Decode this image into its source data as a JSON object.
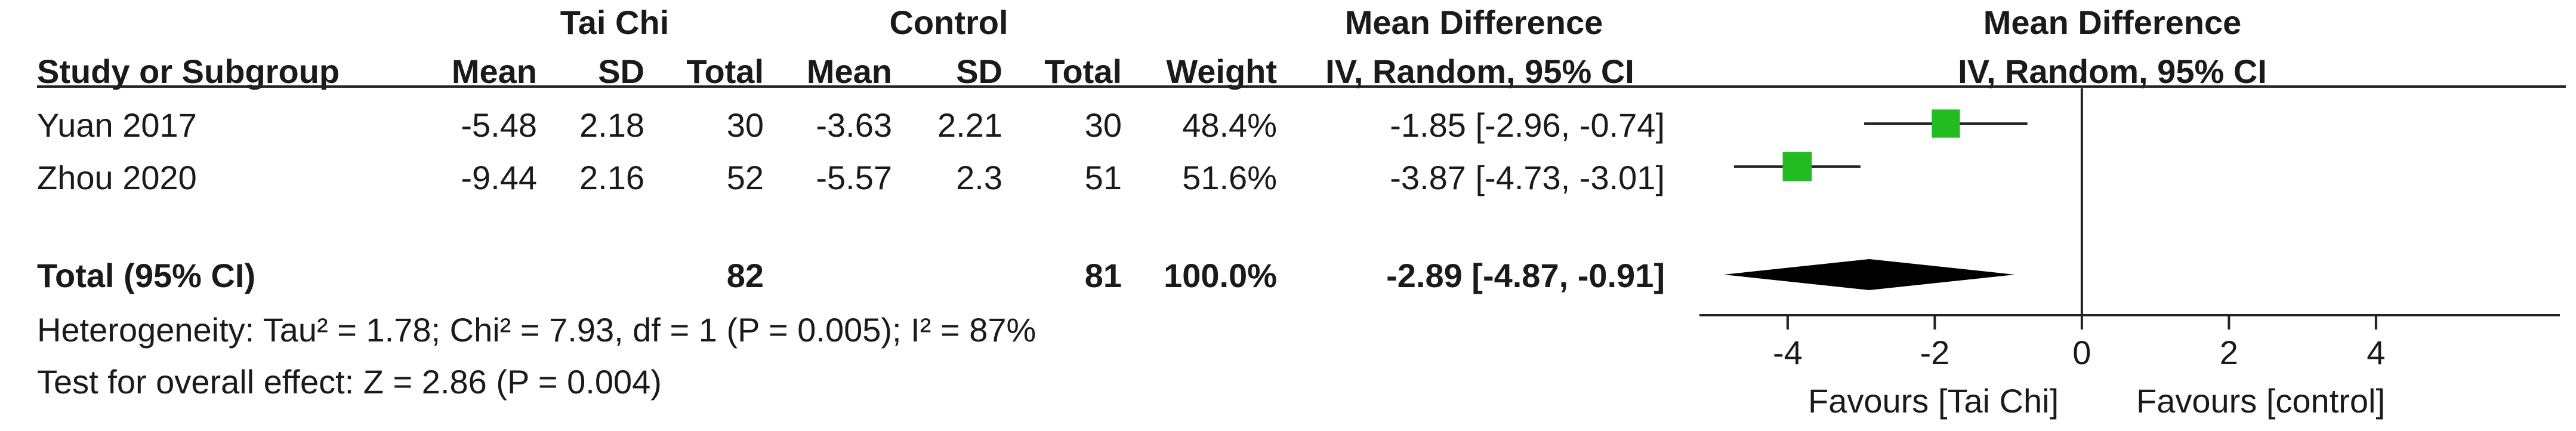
{
  "headers": {
    "group1": "Tai Chi",
    "group2": "Control",
    "md_table": "Mean Difference",
    "md_plot": "Mean Difference",
    "study_col": "Study or Subgroup",
    "mean1": "Mean",
    "sd1": "SD",
    "total1": "Total",
    "mean2": "Mean",
    "sd2": "SD",
    "total2": "Total",
    "weight": "Weight",
    "method_table": "IV, Random, 95% CI",
    "method_plot": "IV, Random, 95% CI"
  },
  "studies": [
    {
      "name": "Yuan 2017",
      "mean1": "-5.48",
      "sd1": "2.18",
      "total1": "30",
      "mean2": "-3.63",
      "sd2": "2.21",
      "total2": "30",
      "weight": "48.4%",
      "ci_text": "-1.85 [-2.96, -0.74]"
    },
    {
      "name": "Zhou 2020",
      "mean1": "-9.44",
      "sd1": "2.16",
      "total1": "52",
      "mean2": "-5.57",
      "sd2": "2.3",
      "total2": "51",
      "weight": "51.6%",
      "ci_text": "-3.87 [-4.73, -3.01]"
    }
  ],
  "total": {
    "label": "Total (95% CI)",
    "total1": "82",
    "total2": "81",
    "weight": "100.0%",
    "ci_text": "-2.89 [-4.87, -0.91]"
  },
  "heterogeneity": "Heterogeneity: Tau² = 1.78; Chi² = 7.93, df = 1 (P = 0.005); I² = 87%",
  "overall_effect": "Test for overall effect: Z = 2.86 (P = 0.004)",
  "favours_left": "Favours [Tai Chi]",
  "favours_right": "Favours [control]",
  "colors": {
    "study_box": "#22bb22",
    "diamond": "#000000",
    "text": "#1a1a1a"
  },
  "chart_data": {
    "type": "forest",
    "xlim": [
      -5.2,
      6.5
    ],
    "x_ticks": [
      -4,
      -2,
      0,
      2,
      4
    ],
    "tick_labels": [
      "-4",
      "-2",
      "0",
      "2",
      "4"
    ],
    "studies": [
      {
        "name": "Yuan 2017",
        "md": -1.85,
        "ci_low": -2.96,
        "ci_high": -0.74,
        "weight": 48.4
      },
      {
        "name": "Zhou 2020",
        "md": -3.87,
        "ci_low": -4.73,
        "ci_high": -3.01,
        "weight": 51.6
      }
    ],
    "pooled": {
      "md": -2.89,
      "ci_low": -4.87,
      "ci_high": -0.91
    }
  }
}
